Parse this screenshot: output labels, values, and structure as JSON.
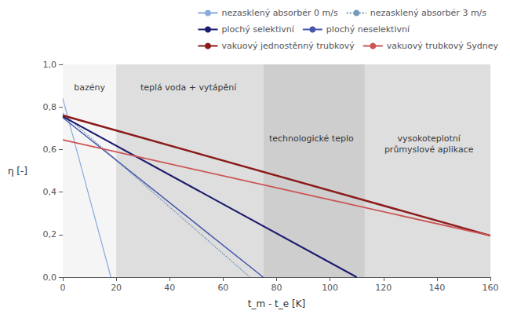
{
  "chart_data": {
    "type": "line",
    "xlabel": "t_m - t_e [K]",
    "ylabel": "η [-]",
    "xlim": [
      0,
      160
    ],
    "ylim": [
      0.0,
      1.0
    ],
    "xticks": [
      0,
      20,
      40,
      60,
      80,
      100,
      120,
      140,
      160
    ],
    "yticks": [
      {
        "value": 0.0,
        "label": "0,0"
      },
      {
        "value": 0.2,
        "label": "0,2"
      },
      {
        "value": 0.4,
        "label": "0,4"
      },
      {
        "value": 0.6,
        "label": "0,6"
      },
      {
        "value": 0.8,
        "label": "0,8"
      },
      {
        "value": 1.0,
        "label": "1,0"
      }
    ],
    "grid": false,
    "legend": "upper right",
    "series": [
      {
        "name": "nezasklený absorbér 0 m/s",
        "color": "#88aadd",
        "line_style": "solid",
        "x": [
          0,
          18
        ],
        "values": [
          0.84,
          0.0
        ]
      },
      {
        "name": "nezasklený absorbér 3 m/s",
        "color": "#7799bb",
        "line_style": "dotted",
        "x": [
          0,
          70
        ],
        "values": [
          0.77,
          0.0
        ]
      },
      {
        "name": "plochý selektivní",
        "color": "#1a1a6e",
        "line_style": "solid",
        "x": [
          0,
          110
        ],
        "values": [
          0.755,
          0.0
        ]
      },
      {
        "name": "plochý neselektivní",
        "color": "#4455aa",
        "line_style": "solid",
        "x": [
          0,
          75
        ],
        "values": [
          0.75,
          0.0
        ]
      },
      {
        "name": "vakuový jednostěnný trubkový",
        "color": "#8b1a1a",
        "line_style": "solid",
        "x": [
          0,
          160
        ],
        "values": [
          0.76,
          0.195
        ]
      },
      {
        "name": "vakuový trubkový Sydney",
        "color": "#cc5555",
        "line_style": "solid",
        "x": [
          0,
          160
        ],
        "values": [
          0.645,
          0.195
        ]
      }
    ],
    "zones": [
      {
        "xmin": 0,
        "xmax": 20,
        "color": "#f5f5f5"
      },
      {
        "xmin": 20,
        "xmax": 75,
        "color": "#dedede"
      },
      {
        "xmin": 75,
        "xmax": 113,
        "color": "#cecece"
      },
      {
        "xmin": 113,
        "xmax": 160,
        "color": "#dedede"
      }
    ],
    "annotations": [
      {
        "text": "bazény",
        "x": 10,
        "y": 0.92
      },
      {
        "text": "teplá voda + vytápění",
        "x": 47,
        "y": 0.92
      },
      {
        "text": "technologické teplo",
        "x": 93,
        "y": 0.68
      },
      {
        "text": "vysokoteplotní\nprůmyslové aplikace",
        "x": 137,
        "y": 0.68
      }
    ]
  }
}
